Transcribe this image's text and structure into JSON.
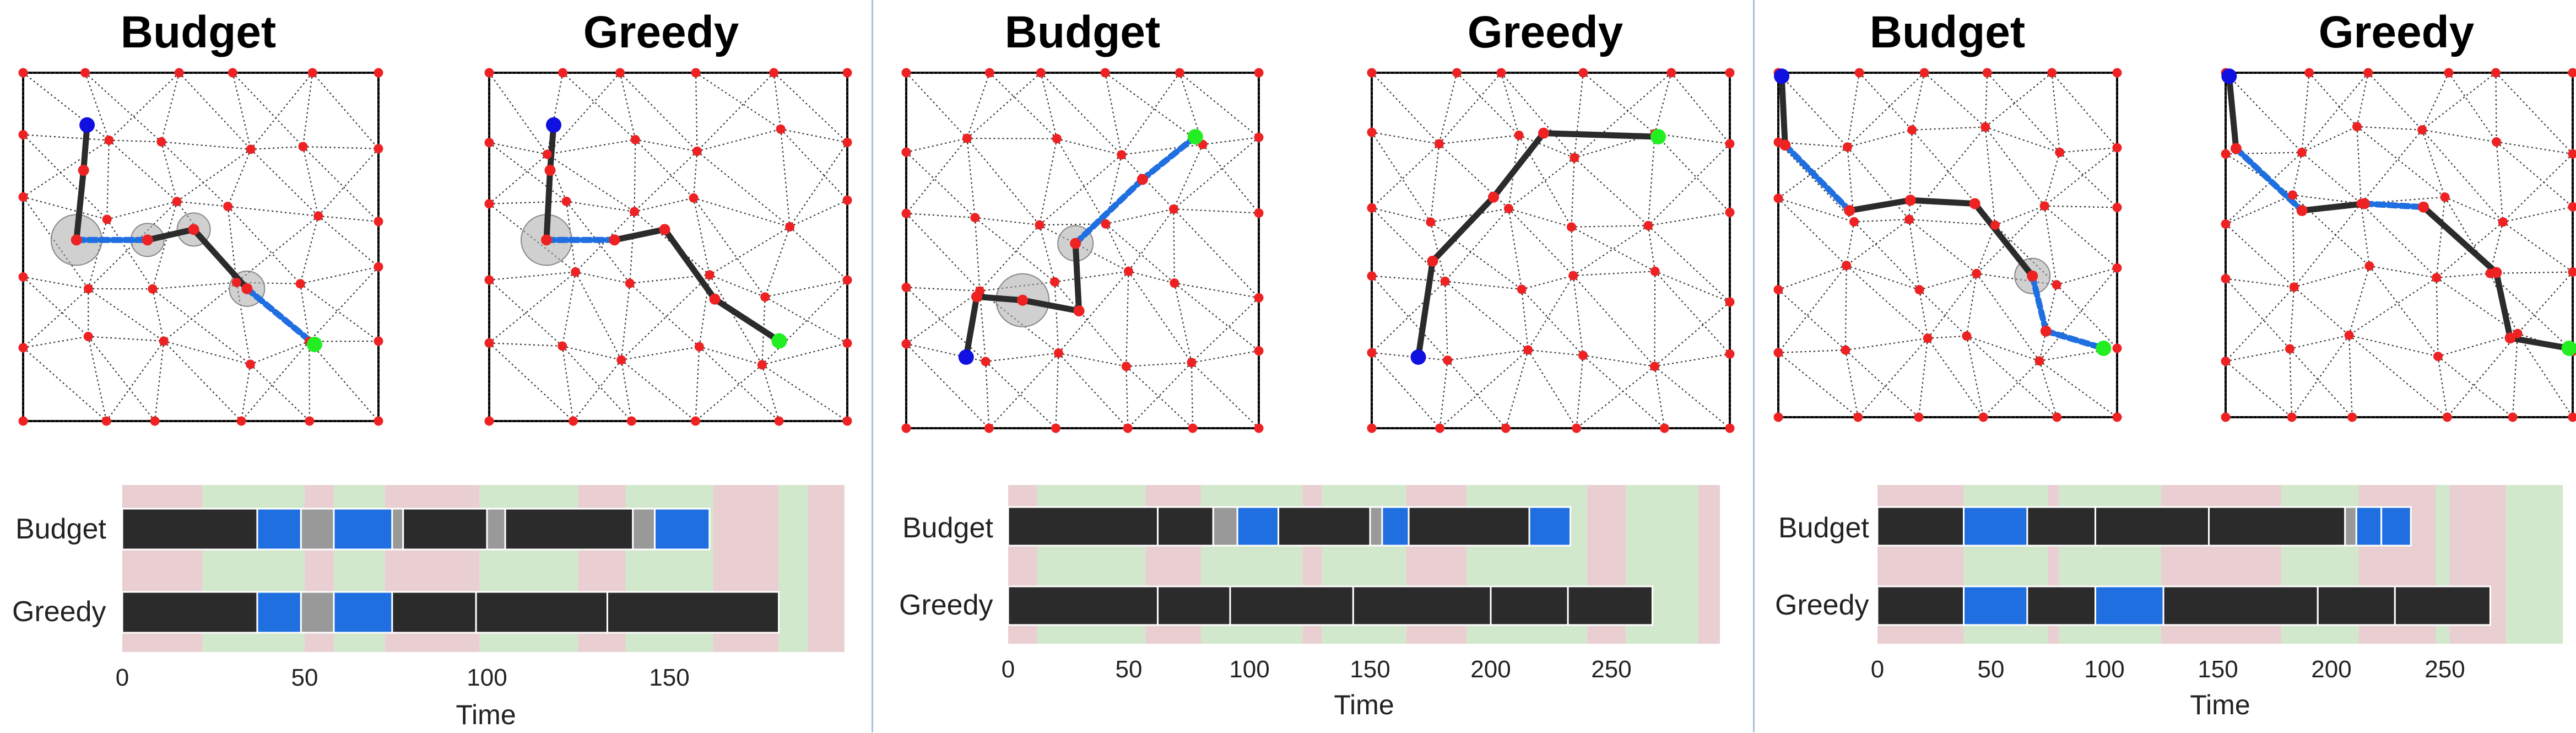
{
  "colors": {
    "start_node": "#1010e0",
    "goal_node": "#22ee22",
    "graph_node": "#ee2222",
    "path_drive": "#2b2b2b",
    "path_comm": "#1f6fe0",
    "wait_bar": "#999999",
    "bg_red": "#e9cfd1",
    "bg_green": "#d2e8cd"
  },
  "chart_data": [
    {
      "type": "bar",
      "titles": [
        "Budget",
        "Greedy"
      ],
      "categories": [
        "Budget",
        "Greedy"
      ],
      "xlabel": "Time",
      "xticks": [
        0,
        50,
        100,
        150
      ],
      "xlim": [
        0,
        198
      ],
      "background_windows": [
        {
          "start": 0,
          "end": 22,
          "color": "red"
        },
        {
          "start": 22,
          "end": 50,
          "color": "green"
        },
        {
          "start": 50,
          "end": 58,
          "color": "red"
        },
        {
          "start": 58,
          "end": 72,
          "color": "green"
        },
        {
          "start": 72,
          "end": 98,
          "color": "red"
        },
        {
          "start": 98,
          "end": 125,
          "color": "green"
        },
        {
          "start": 125,
          "end": 138,
          "color": "red"
        },
        {
          "start": 138,
          "end": 162,
          "color": "green"
        },
        {
          "start": 162,
          "end": 180,
          "color": "red"
        },
        {
          "start": 180,
          "end": 188,
          "color": "green"
        },
        {
          "start": 188,
          "end": 198,
          "color": "red"
        }
      ],
      "series": [
        {
          "name": "Budget",
          "segments": [
            {
              "start": 0,
              "end": 37,
              "kind": "drive"
            },
            {
              "start": 37,
              "end": 49,
              "kind": "comm"
            },
            {
              "start": 49,
              "end": 58,
              "kind": "wait"
            },
            {
              "start": 58,
              "end": 74,
              "kind": "comm"
            },
            {
              "start": 74,
              "end": 77,
              "kind": "wait"
            },
            {
              "start": 77,
              "end": 100,
              "kind": "drive"
            },
            {
              "start": 100,
              "end": 105,
              "kind": "wait"
            },
            {
              "start": 105,
              "end": 140,
              "kind": "drive"
            },
            {
              "start": 140,
              "end": 146,
              "kind": "wait"
            },
            {
              "start": 146,
              "end": 161,
              "kind": "comm"
            }
          ]
        },
        {
          "name": "Greedy",
          "segments": [
            {
              "start": 0,
              "end": 37,
              "kind": "drive"
            },
            {
              "start": 37,
              "end": 49,
              "kind": "comm"
            },
            {
              "start": 49,
              "end": 58,
              "kind": "wait"
            },
            {
              "start": 58,
              "end": 74,
              "kind": "comm"
            },
            {
              "start": 74,
              "end": 97,
              "kind": "drive"
            },
            {
              "start": 97,
              "end": 133,
              "kind": "drive"
            },
            {
              "start": 133,
              "end": 180,
              "kind": "drive"
            }
          ]
        }
      ]
    },
    {
      "type": "bar",
      "titles": [
        "Budget",
        "Greedy"
      ],
      "categories": [
        "Budget",
        "Greedy"
      ],
      "xlabel": "Time",
      "xticks": [
        0,
        50,
        100,
        150,
        200,
        250
      ],
      "xlim": [
        0,
        295
      ],
      "background_windows": [
        {
          "start": 0,
          "end": 12,
          "color": "red"
        },
        {
          "start": 12,
          "end": 57,
          "color": "green"
        },
        {
          "start": 57,
          "end": 80,
          "color": "red"
        },
        {
          "start": 80,
          "end": 122,
          "color": "green"
        },
        {
          "start": 122,
          "end": 130,
          "color": "red"
        },
        {
          "start": 130,
          "end": 165,
          "color": "green"
        },
        {
          "start": 165,
          "end": 190,
          "color": "red"
        },
        {
          "start": 190,
          "end": 240,
          "color": "green"
        },
        {
          "start": 240,
          "end": 256,
          "color": "red"
        },
        {
          "start": 256,
          "end": 286,
          "color": "green"
        },
        {
          "start": 286,
          "end": 295,
          "color": "red"
        }
      ],
      "series": [
        {
          "name": "Budget",
          "segments": [
            {
              "start": 0,
              "end": 62,
              "kind": "drive"
            },
            {
              "start": 62,
              "end": 85,
              "kind": "drive"
            },
            {
              "start": 85,
              "end": 95,
              "kind": "wait"
            },
            {
              "start": 95,
              "end": 112,
              "kind": "comm"
            },
            {
              "start": 112,
              "end": 150,
              "kind": "drive"
            },
            {
              "start": 150,
              "end": 155,
              "kind": "wait"
            },
            {
              "start": 155,
              "end": 166,
              "kind": "comm"
            },
            {
              "start": 166,
              "end": 216,
              "kind": "drive"
            },
            {
              "start": 216,
              "end": 233,
              "kind": "comm"
            }
          ]
        },
        {
          "name": "Greedy",
          "segments": [
            {
              "start": 0,
              "end": 62,
              "kind": "drive"
            },
            {
              "start": 62,
              "end": 92,
              "kind": "drive"
            },
            {
              "start": 92,
              "end": 143,
              "kind": "drive"
            },
            {
              "start": 143,
              "end": 200,
              "kind": "drive"
            },
            {
              "start": 200,
              "end": 232,
              "kind": "drive"
            },
            {
              "start": 232,
              "end": 267,
              "kind": "drive"
            }
          ]
        }
      ]
    },
    {
      "type": "bar",
      "titles": [
        "Budget",
        "Greedy"
      ],
      "categories": [
        "Budget",
        "Greedy"
      ],
      "xlabel": "Time",
      "xticks": [
        0,
        50,
        100,
        150,
        200,
        250
      ],
      "xlim": [
        0,
        302
      ],
      "background_windows": [
        {
          "start": 0,
          "end": 38,
          "color": "red"
        },
        {
          "start": 38,
          "end": 75,
          "color": "green"
        },
        {
          "start": 75,
          "end": 80,
          "color": "red"
        },
        {
          "start": 80,
          "end": 125,
          "color": "green"
        },
        {
          "start": 125,
          "end": 178,
          "color": "red"
        },
        {
          "start": 178,
          "end": 212,
          "color": "green"
        },
        {
          "start": 212,
          "end": 246,
          "color": "red"
        },
        {
          "start": 246,
          "end": 252,
          "color": "green"
        },
        {
          "start": 252,
          "end": 277,
          "color": "red"
        },
        {
          "start": 277,
          "end": 302,
          "color": "green"
        }
      ],
      "series": [
        {
          "name": "Budget",
          "segments": [
            {
              "start": 0,
              "end": 38,
              "kind": "drive"
            },
            {
              "start": 38,
              "end": 66,
              "kind": "comm"
            },
            {
              "start": 66,
              "end": 96,
              "kind": "drive"
            },
            {
              "start": 96,
              "end": 146,
              "kind": "drive"
            },
            {
              "start": 146,
              "end": 206,
              "kind": "drive"
            },
            {
              "start": 206,
              "end": 211,
              "kind": "wait"
            },
            {
              "start": 211,
              "end": 222,
              "kind": "comm"
            },
            {
              "start": 222,
              "end": 235,
              "kind": "comm"
            }
          ]
        },
        {
          "name": "Greedy",
          "segments": [
            {
              "start": 0,
              "end": 38,
              "kind": "drive"
            },
            {
              "start": 38,
              "end": 66,
              "kind": "comm"
            },
            {
              "start": 66,
              "end": 96,
              "kind": "drive"
            },
            {
              "start": 96,
              "end": 126,
              "kind": "comm"
            },
            {
              "start": 126,
              "end": 194,
              "kind": "drive"
            },
            {
              "start": 194,
              "end": 228,
              "kind": "drive"
            },
            {
              "start": 228,
              "end": 270,
              "kind": "drive"
            }
          ]
        }
      ]
    }
  ]
}
